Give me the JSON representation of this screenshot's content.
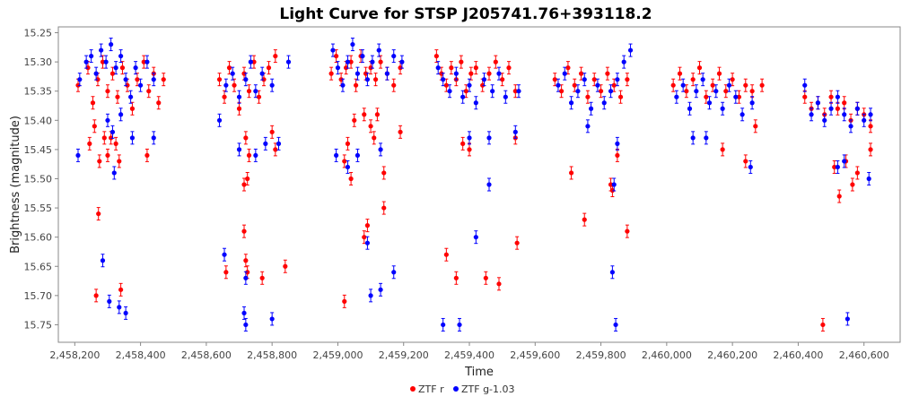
{
  "chart_data": {
    "type": "scatter",
    "title": "Light Curve for STSP J205741.76+393118.2",
    "xlabel": "Time",
    "ylabel": "Brightness (magnitude)",
    "xlim": [
      2458150,
      2460710
    ],
    "ylim": [
      15.24,
      15.78
    ],
    "y_inverted": true,
    "grid": false,
    "legend_position": "bottom-center",
    "x_ticks": [
      2458200,
      2458400,
      2458600,
      2458800,
      2459000,
      2459200,
      2459400,
      2459600,
      2459800,
      2460000,
      2460200,
      2460400,
      2460600
    ],
    "x_tick_labels": [
      "2,458,200",
      "2,458,400",
      "2,458,600",
      "2,458,800",
      "2,459,000",
      "2,459,200",
      "2,459,400",
      "2,459,600",
      "2,459,800",
      "2,460,000",
      "2,460,200",
      "2,460,400",
      "2,460,600"
    ],
    "y_ticks": [
      15.25,
      15.3,
      15.35,
      15.4,
      15.45,
      15.5,
      15.55,
      15.6,
      15.65,
      15.7,
      15.75
    ],
    "y_tick_labels": [
      "15.25",
      "15.30",
      "15.35",
      "15.40",
      "15.45",
      "15.50",
      "15.55",
      "15.60",
      "15.65",
      "15.70",
      "15.75"
    ],
    "series": [
      {
        "name": "ZTF r",
        "color": "#ff0000",
        "points": [
          [
            2458210,
            15.34
          ],
          [
            2458240,
            15.31
          ],
          [
            2458255,
            15.37
          ],
          [
            2458270,
            15.33
          ],
          [
            2458285,
            15.3
          ],
          [
            2458300,
            15.35
          ],
          [
            2458315,
            15.32
          ],
          [
            2458330,
            15.36
          ],
          [
            2458345,
            15.31
          ],
          [
            2458360,
            15.34
          ],
          [
            2458375,
            15.38
          ],
          [
            2458390,
            15.33
          ],
          [
            2458410,
            15.3
          ],
          [
            2458425,
            15.35
          ],
          [
            2458440,
            15.32
          ],
          [
            2458455,
            15.37
          ],
          [
            2458470,
            15.33
          ],
          [
            2458245,
            15.44
          ],
          [
            2458260,
            15.41
          ],
          [
            2458275,
            15.47
          ],
          [
            2458290,
            15.43
          ],
          [
            2458300,
            15.46
          ],
          [
            2458310,
            15.43
          ],
          [
            2458325,
            15.44
          ],
          [
            2458335,
            15.47
          ],
          [
            2458420,
            15.46
          ],
          [
            2458272,
            15.56
          ],
          [
            2458265,
            15.7
          ],
          [
            2458340,
            15.69
          ],
          [
            2458640,
            15.33
          ],
          [
            2458655,
            15.36
          ],
          [
            2458670,
            15.31
          ],
          [
            2458685,
            15.34
          ],
          [
            2458700,
            15.38
          ],
          [
            2458715,
            15.32
          ],
          [
            2458730,
            15.35
          ],
          [
            2458745,
            15.3
          ],
          [
            2458760,
            15.36
          ],
          [
            2458775,
            15.33
          ],
          [
            2458790,
            15.31
          ],
          [
            2458810,
            15.29
          ],
          [
            2458720,
            15.43
          ],
          [
            2458730,
            15.46
          ],
          [
            2458715,
            15.51
          ],
          [
            2458725,
            15.5
          ],
          [
            2458800,
            15.42
          ],
          [
            2458810,
            15.45
          ],
          [
            2458715,
            15.59
          ],
          [
            2458720,
            15.64
          ],
          [
            2458660,
            15.66
          ],
          [
            2458725,
            15.66
          ],
          [
            2458770,
            15.67
          ],
          [
            2458840,
            15.65
          ],
          [
            2458980,
            15.32
          ],
          [
            2458995,
            15.29
          ],
          [
            2459010,
            15.33
          ],
          [
            2459025,
            15.31
          ],
          [
            2459040,
            15.3
          ],
          [
            2459055,
            15.34
          ],
          [
            2459070,
            15.29
          ],
          [
            2459085,
            15.32
          ],
          [
            2459100,
            15.31
          ],
          [
            2459115,
            15.33
          ],
          [
            2459130,
            15.3
          ],
          [
            2459150,
            15.32
          ],
          [
            2459170,
            15.34
          ],
          [
            2459190,
            15.31
          ],
          [
            2459050,
            15.4
          ],
          [
            2459080,
            15.39
          ],
          [
            2459100,
            15.41
          ],
          [
            2459120,
            15.39
          ],
          [
            2459030,
            15.44
          ],
          [
            2459020,
            15.47
          ],
          [
            2459110,
            15.43
          ],
          [
            2459140,
            15.49
          ],
          [
            2459190,
            15.42
          ],
          [
            2459040,
            15.5
          ],
          [
            2459140,
            15.55
          ],
          [
            2459090,
            15.58
          ],
          [
            2459080,
            15.6
          ],
          [
            2459020,
            15.71
          ],
          [
            2459300,
            15.29
          ],
          [
            2459315,
            15.32
          ],
          [
            2459330,
            15.34
          ],
          [
            2459345,
            15.31
          ],
          [
            2459360,
            15.33
          ],
          [
            2459375,
            15.3
          ],
          [
            2459390,
            15.35
          ],
          [
            2459405,
            15.32
          ],
          [
            2459420,
            15.31
          ],
          [
            2459440,
            15.34
          ],
          [
            2459460,
            15.32
          ],
          [
            2459480,
            15.3
          ],
          [
            2459500,
            15.33
          ],
          [
            2459520,
            15.31
          ],
          [
            2459540,
            15.35
          ],
          [
            2459380,
            15.44
          ],
          [
            2459400,
            15.45
          ],
          [
            2459540,
            15.43
          ],
          [
            2459330,
            15.63
          ],
          [
            2459360,
            15.67
          ],
          [
            2459450,
            15.67
          ],
          [
            2459490,
            15.68
          ],
          [
            2459545,
            15.61
          ],
          [
            2459660,
            15.33
          ],
          [
            2459680,
            15.35
          ],
          [
            2459700,
            15.31
          ],
          [
            2459720,
            15.34
          ],
          [
            2459740,
            15.32
          ],
          [
            2459760,
            15.36
          ],
          [
            2459780,
            15.33
          ],
          [
            2459800,
            15.35
          ],
          [
            2459820,
            15.32
          ],
          [
            2459840,
            15.34
          ],
          [
            2459860,
            15.36
          ],
          [
            2459880,
            15.33
          ],
          [
            2459710,
            15.49
          ],
          [
            2459850,
            15.46
          ],
          [
            2459830,
            15.51
          ],
          [
            2459835,
            15.52
          ],
          [
            2459750,
            15.57
          ],
          [
            2459880,
            15.59
          ],
          [
            2460020,
            15.34
          ],
          [
            2460040,
            15.32
          ],
          [
            2460060,
            15.35
          ],
          [
            2460080,
            15.33
          ],
          [
            2460100,
            15.31
          ],
          [
            2460120,
            15.36
          ],
          [
            2460140,
            15.34
          ],
          [
            2460160,
            15.32
          ],
          [
            2460180,
            15.35
          ],
          [
            2460200,
            15.33
          ],
          [
            2460220,
            15.36
          ],
          [
            2460240,
            15.34
          ],
          [
            2460260,
            15.35
          ],
          [
            2460290,
            15.34
          ],
          [
            2460170,
            15.45
          ],
          [
            2460240,
            15.47
          ],
          [
            2460270,
            15.41
          ],
          [
            2460420,
            15.36
          ],
          [
            2460440,
            15.38
          ],
          [
            2460460,
            15.37
          ],
          [
            2460480,
            15.39
          ],
          [
            2460500,
            15.36
          ],
          [
            2460520,
            15.38
          ],
          [
            2460540,
            15.37
          ],
          [
            2460560,
            15.4
          ],
          [
            2460580,
            15.38
          ],
          [
            2460600,
            15.39
          ],
          [
            2460620,
            15.41
          ],
          [
            2460510,
            15.48
          ],
          [
            2460525,
            15.53
          ],
          [
            2460545,
            15.47
          ],
          [
            2460565,
            15.51
          ],
          [
            2460580,
            15.49
          ],
          [
            2460620,
            15.45
          ],
          [
            2460475,
            15.75
          ]
        ]
      },
      {
        "name": "ZTF g-1.03",
        "color": "#0000ff",
        "points": [
          [
            2458215,
            15.33
          ],
          [
            2458235,
            15.3
          ],
          [
            2458250,
            15.29
          ],
          [
            2458265,
            15.32
          ],
          [
            2458280,
            15.28
          ],
          [
            2458295,
            15.3
          ],
          [
            2458310,
            15.27
          ],
          [
            2458325,
            15.31
          ],
          [
            2458340,
            15.29
          ],
          [
            2458355,
            15.33
          ],
          [
            2458370,
            15.36
          ],
          [
            2458385,
            15.31
          ],
          [
            2458400,
            15.34
          ],
          [
            2458420,
            15.3
          ],
          [
            2458440,
            15.33
          ],
          [
            2458300,
            15.4
          ],
          [
            2458315,
            15.42
          ],
          [
            2458340,
            15.39
          ],
          [
            2458375,
            15.43
          ],
          [
            2458440,
            15.43
          ],
          [
            2458210,
            15.46
          ],
          [
            2458320,
            15.49
          ],
          [
            2458285,
            15.64
          ],
          [
            2458305,
            15.71
          ],
          [
            2458355,
            15.73
          ],
          [
            2458335,
            15.72
          ],
          [
            2458640,
            15.4
          ],
          [
            2458660,
            15.34
          ],
          [
            2458680,
            15.32
          ],
          [
            2458700,
            15.36
          ],
          [
            2458720,
            15.33
          ],
          [
            2458735,
            15.3
          ],
          [
            2458750,
            15.35
          ],
          [
            2458770,
            15.32
          ],
          [
            2458800,
            15.34
          ],
          [
            2458850,
            15.3
          ],
          [
            2458700,
            15.45
          ],
          [
            2458750,
            15.46
          ],
          [
            2458780,
            15.44
          ],
          [
            2458820,
            15.44
          ],
          [
            2458655,
            15.63
          ],
          [
            2458720,
            15.67
          ],
          [
            2458715,
            15.73
          ],
          [
            2458720,
            15.75
          ],
          [
            2458800,
            15.74
          ],
          [
            2458985,
            15.28
          ],
          [
            2459000,
            15.31
          ],
          [
            2459015,
            15.34
          ],
          [
            2459030,
            15.3
          ],
          [
            2459045,
            15.27
          ],
          [
            2459060,
            15.32
          ],
          [
            2459075,
            15.29
          ],
          [
            2459090,
            15.33
          ],
          [
            2459105,
            15.3
          ],
          [
            2459125,
            15.28
          ],
          [
            2459150,
            15.32
          ],
          [
            2459170,
            15.29
          ],
          [
            2459195,
            15.3
          ],
          [
            2458995,
            15.46
          ],
          [
            2459030,
            15.48
          ],
          [
            2459060,
            15.46
          ],
          [
            2459130,
            15.45
          ],
          [
            2459090,
            15.61
          ],
          [
            2459100,
            15.7
          ],
          [
            2459130,
            15.69
          ],
          [
            2459170,
            15.66
          ],
          [
            2459305,
            15.31
          ],
          [
            2459320,
            15.33
          ],
          [
            2459340,
            15.35
          ],
          [
            2459360,
            15.32
          ],
          [
            2459380,
            15.36
          ],
          [
            2459400,
            15.34
          ],
          [
            2459420,
            15.37
          ],
          [
            2459445,
            15.33
          ],
          [
            2459470,
            15.35
          ],
          [
            2459490,
            15.32
          ],
          [
            2459510,
            15.36
          ],
          [
            2459550,
            15.35
          ],
          [
            2459400,
            15.43
          ],
          [
            2459460,
            15.43
          ],
          [
            2459540,
            15.42
          ],
          [
            2459460,
            15.51
          ],
          [
            2459420,
            15.6
          ],
          [
            2459320,
            15.75
          ],
          [
            2459370,
            15.75
          ],
          [
            2459670,
            15.34
          ],
          [
            2459690,
            15.32
          ],
          [
            2459710,
            15.37
          ],
          [
            2459730,
            15.35
          ],
          [
            2459750,
            15.33
          ],
          [
            2459770,
            15.38
          ],
          [
            2459790,
            15.34
          ],
          [
            2459810,
            15.37
          ],
          [
            2459830,
            15.35
          ],
          [
            2459850,
            15.33
          ],
          [
            2459870,
            15.3
          ],
          [
            2459890,
            15.28
          ],
          [
            2459760,
            15.41
          ],
          [
            2459850,
            15.44
          ],
          [
            2459840,
            15.51
          ],
          [
            2459835,
            15.66
          ],
          [
            2459845,
            15.75
          ],
          [
            2460030,
            15.36
          ],
          [
            2460050,
            15.34
          ],
          [
            2460070,
            15.38
          ],
          [
            2460090,
            15.35
          ],
          [
            2460110,
            15.33
          ],
          [
            2460130,
            15.37
          ],
          [
            2460150,
            15.35
          ],
          [
            2460170,
            15.38
          ],
          [
            2460190,
            15.34
          ],
          [
            2460210,
            15.36
          ],
          [
            2460230,
            15.39
          ],
          [
            2460260,
            15.37
          ],
          [
            2460080,
            15.43
          ],
          [
            2460120,
            15.43
          ],
          [
            2460255,
            15.48
          ],
          [
            2460420,
            15.34
          ],
          [
            2460440,
            15.39
          ],
          [
            2460460,
            15.37
          ],
          [
            2460480,
            15.4
          ],
          [
            2460500,
            15.38
          ],
          [
            2460520,
            15.36
          ],
          [
            2460540,
            15.39
          ],
          [
            2460560,
            15.41
          ],
          [
            2460580,
            15.38
          ],
          [
            2460600,
            15.4
          ],
          [
            2460620,
            15.39
          ],
          [
            2460520,
            15.48
          ],
          [
            2460540,
            15.47
          ],
          [
            2460615,
            15.5
          ],
          [
            2460550,
            15.74
          ]
        ]
      }
    ]
  }
}
